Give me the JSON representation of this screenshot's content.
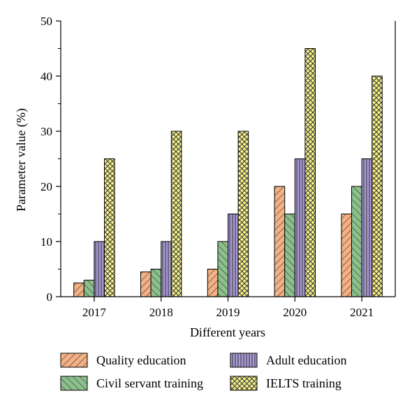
{
  "chart_data": {
    "type": "bar",
    "xlabel": "Different years",
    "ylabel": "Parameter value (%)",
    "ylim": [
      0,
      50
    ],
    "yticks": [
      0,
      10,
      20,
      30,
      40,
      50
    ],
    "categories": [
      "2017",
      "2018",
      "2019",
      "2020",
      "2021"
    ],
    "series": [
      {
        "name": "Quality education",
        "values": [
          2.5,
          4.5,
          5,
          20,
          15
        ],
        "color": "#F4B183",
        "pattern": "diagonal-forward"
      },
      {
        "name": "Civil servant training",
        "values": [
          3,
          5,
          10,
          15,
          20
        ],
        "color": "#8CC08C",
        "pattern": "diagonal-backward"
      },
      {
        "name": "Adult education",
        "values": [
          10,
          10,
          15,
          25,
          25
        ],
        "color": "#A89AD6",
        "pattern": "vertical"
      },
      {
        "name": "IELTS training",
        "values": [
          25,
          30,
          30,
          45,
          40
        ],
        "color": "#F5F08A",
        "pattern": "crosshatch"
      }
    ],
    "legend": "bottom",
    "grid": false
  }
}
